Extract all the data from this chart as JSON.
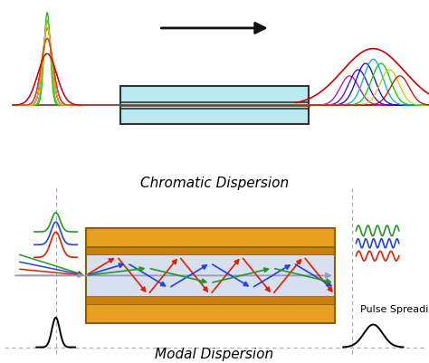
{
  "bg_color": "#ffffff",
  "title1": "Chromatic Dispersion",
  "title2": "Modal Dispersion",
  "title_fontsize": 11,
  "arrow_color": "#111111",
  "fiber_top": {
    "cladding": "#b8e8f0",
    "border": "#333333",
    "core_line1": "#8B3A3A",
    "core_line2": "#cc3333"
  },
  "modal_colors": {
    "gold": "#E8A020",
    "gold_edge": "#8B6000",
    "core_fill": "#d8dff0",
    "inner_gold": "#C88010"
  },
  "colors_left_narrow": [
    "#cc00cc",
    "#6600cc",
    "#0000dd",
    "#00aaaa",
    "#00cc00",
    "#aacc00",
    "#ffaa00",
    "#ee4400",
    "#cc0000"
  ],
  "colors_right_wide": [
    "#cc0000",
    "#ff6600",
    "#ffcc00",
    "#00cc00",
    "#00aaff",
    "#0000cc",
    "#cc00cc"
  ],
  "modal_ray_red": "#dd2200",
  "modal_ray_blue": "#2244dd",
  "modal_ray_green": "#229922",
  "modal_ray_gray": "#9999bb",
  "dashed_color": "#aaaaaa",
  "pulse_spread_label": "Pulse Spreading",
  "label_fontsize": 8
}
